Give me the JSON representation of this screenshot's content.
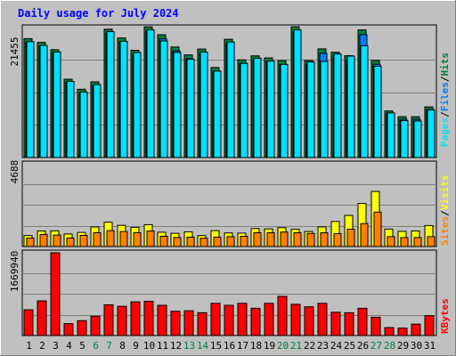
{
  "chart_data": [
    {
      "type": "bar",
      "title": "Daily usage for July 2024",
      "categories": [
        "1",
        "2",
        "3",
        "4",
        "5",
        "6",
        "7",
        "8",
        "9",
        "10",
        "11",
        "12",
        "13",
        "14",
        "15",
        "16",
        "17",
        "18",
        "19",
        "20",
        "21",
        "22",
        "23",
        "24",
        "25",
        "26",
        "27",
        "28",
        "29",
        "30",
        "31"
      ],
      "weekend_days": [
        "6",
        "7",
        "13",
        "14",
        "20",
        "21",
        "27",
        "28"
      ],
      "y_tick_label": "21455",
      "ylim": [
        0,
        21455
      ],
      "series": [
        {
          "name": "Hits",
          "color": "#008040",
          "values": [
            19630,
            19010,
            17800,
            12930,
            11270,
            12500,
            21190,
            19740,
            17710,
            21580,
            20280,
            18250,
            16940,
            17910,
            14860,
            19520,
            16130,
            16790,
            16450,
            16020,
            21580,
            16030,
            17940,
            17390,
            16810,
            21070,
            16050,
            7690,
            6740,
            6740,
            8360
          ]
        },
        {
          "name": "Files",
          "color": "#0080ff",
          "values": [
            19000,
            18400,
            17300,
            12400,
            10700,
            11900,
            20500,
            19100,
            17000,
            20800,
            19600,
            17600,
            16300,
            17200,
            14200,
            18800,
            15500,
            16100,
            15800,
            15400,
            20800,
            15400,
            17200,
            16600,
            16100,
            20300,
            15400,
            7300,
            6300,
            6300,
            7900
          ]
        },
        {
          "name": "Pages",
          "color": "#00e0ff",
          "values": [
            19130,
            18500,
            17430,
            12580,
            10820,
            12050,
            20800,
            19190,
            17340,
            21070,
            19250,
            17350,
            16230,
            17400,
            14270,
            19070,
            15550,
            16410,
            15930,
            15370,
            21070,
            15790,
            15860,
            17100,
            16740,
            18460,
            15070,
            7370,
            6100,
            6030,
            7850
          ]
        }
      ]
    },
    {
      "type": "bar",
      "title": "",
      "categories": [
        "1",
        "2",
        "3",
        "4",
        "5",
        "6",
        "7",
        "8",
        "9",
        "10",
        "11",
        "12",
        "13",
        "14",
        "15",
        "16",
        "17",
        "18",
        "19",
        "20",
        "21",
        "22",
        "23",
        "24",
        "25",
        "26",
        "27",
        "28",
        "29",
        "30",
        "31"
      ],
      "y_tick_label": "4688",
      "ylim": [
        0,
        4688
      ],
      "series": [
        {
          "name": "Visits",
          "color": "#ff8000",
          "values": [
            480,
            680,
            650,
            480,
            630,
            780,
            900,
            850,
            780,
            880,
            580,
            510,
            530,
            470,
            530,
            560,
            580,
            780,
            780,
            820,
            780,
            740,
            780,
            730,
            980,
            1300,
            1950,
            560,
            510,
            510,
            560
          ]
        },
        {
          "name": "Sites",
          "color": "#ffff00",
          "values": [
            620,
            880,
            890,
            710,
            800,
            1110,
            1380,
            1200,
            1090,
            1240,
            810,
            750,
            830,
            620,
            900,
            770,
            760,
            1020,
            1000,
            1070,
            980,
            850,
            1110,
            1420,
            1760,
            2440,
            3120,
            990,
            860,
            880,
            1190
          ]
        }
      ]
    },
    {
      "type": "bar",
      "title": "",
      "categories": [
        "1",
        "2",
        "3",
        "4",
        "5",
        "6",
        "7",
        "8",
        "9",
        "10",
        "11",
        "12",
        "13",
        "14",
        "15",
        "16",
        "17",
        "18",
        "19",
        "20",
        "21",
        "22",
        "23",
        "24",
        "25",
        "26",
        "27",
        "28",
        "29",
        "30",
        "31"
      ],
      "y_tick_label": "1669940",
      "ylim": [
        0,
        1669940
      ],
      "series": [
        {
          "name": "KBytes",
          "color": "#ff0000",
          "values": [
            520000,
            700000,
            1669940,
            240000,
            300000,
            390000,
            620000,
            590000,
            680000,
            690000,
            610000,
            490000,
            500000,
            460000,
            650000,
            610000,
            650000,
            550000,
            650000,
            790000,
            630000,
            580000,
            650000,
            470000,
            460000,
            550000,
            370000,
            160000,
            150000,
            230000,
            400000
          ]
        }
      ]
    }
  ],
  "legend": {
    "panel1": [
      "Pages",
      "Files",
      "Hits"
    ],
    "panel2": [
      "Sites",
      "Visits"
    ],
    "panel3": [
      "KBytes"
    ],
    "separator": "/"
  }
}
